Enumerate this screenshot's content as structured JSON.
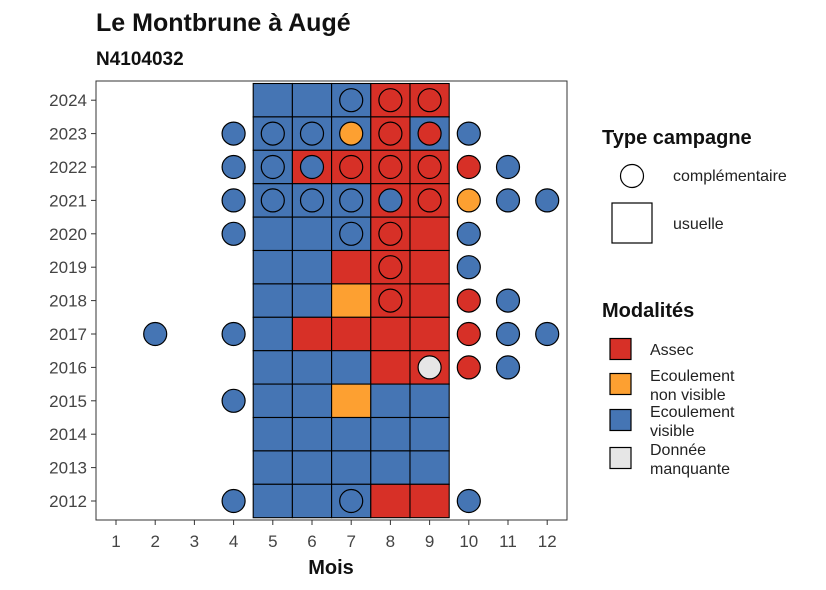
{
  "chart_data": {
    "type": "heatmap",
    "title": "Le Montbrune à Augé",
    "subtitle": "N4104032",
    "xlabel": "Mois",
    "ylabel": "",
    "x_ticks": [
      1,
      2,
      3,
      4,
      5,
      6,
      7,
      8,
      9,
      10,
      11,
      12
    ],
    "y_ticks": [
      2012,
      2013,
      2014,
      2015,
      2016,
      2017,
      2018,
      2019,
      2020,
      2021,
      2022,
      2023,
      2024
    ],
    "legend_shape": {
      "title": "Type campagne",
      "entries": [
        {
          "key": "complementaire",
          "label": "complémentaire",
          "shape": "circle"
        },
        {
          "key": "usuelle",
          "label": "usuelle",
          "shape": "square"
        }
      ]
    },
    "legend_fill": {
      "title": "Modalités",
      "entries": [
        {
          "key": "A",
          "lines": [
            "Assec"
          ],
          "color": "#d73027"
        },
        {
          "key": "N",
          "lines": [
            "Ecoulement",
            "non visible"
          ],
          "color": "#fda031"
        },
        {
          "key": "V",
          "lines": [
            "Ecoulement",
            "visible"
          ],
          "color": "#4575b4"
        },
        {
          "key": "M",
          "lines": [
            "Donnée",
            "manquante"
          ],
          "color": "#e6e6e6"
        }
      ]
    },
    "series": [
      {
        "year": 2024,
        "usuelle": {
          "5": "V",
          "6": "V",
          "7": "V",
          "8": "A",
          "9": "A"
        },
        "complementaire": {
          "7": "V",
          "8": "A",
          "9": "A"
        }
      },
      {
        "year": 2023,
        "usuelle": {
          "5": "V",
          "6": "V",
          "7": "V",
          "8": "A",
          "9": "V"
        },
        "complementaire": {
          "4": "V",
          "5": "V",
          "6": "V",
          "7": "N",
          "8": "A",
          "9": "A",
          "10": "V"
        }
      },
      {
        "year": 2022,
        "usuelle": {
          "5": "V",
          "6": "A",
          "7": "A",
          "8": "A",
          "9": "A"
        },
        "complementaire": {
          "4": "V",
          "5": "V",
          "6": "V",
          "7": "A",
          "8": "A",
          "9": "A",
          "10": "A",
          "11": "V"
        }
      },
      {
        "year": 2021,
        "usuelle": {
          "5": "V",
          "6": "V",
          "7": "V",
          "8": "A",
          "9": "A"
        },
        "complementaire": {
          "4": "V",
          "5": "V",
          "6": "V",
          "7": "V",
          "8": "V",
          "9": "A",
          "10": "N",
          "11": "V",
          "12": "V"
        }
      },
      {
        "year": 2020,
        "usuelle": {
          "5": "V",
          "6": "V",
          "7": "V",
          "8": "A",
          "9": "A"
        },
        "complementaire": {
          "4": "V",
          "7": "V",
          "8": "A",
          "10": "V"
        }
      },
      {
        "year": 2019,
        "usuelle": {
          "5": "V",
          "6": "V",
          "7": "A",
          "8": "A",
          "9": "A"
        },
        "complementaire": {
          "8": "A",
          "10": "V"
        }
      },
      {
        "year": 2018,
        "usuelle": {
          "5": "V",
          "6": "V",
          "7": "N",
          "8": "A",
          "9": "A"
        },
        "complementaire": {
          "8": "A",
          "10": "A",
          "11": "V"
        }
      },
      {
        "year": 2017,
        "usuelle": {
          "5": "V",
          "6": "A",
          "7": "A",
          "8": "A",
          "9": "A"
        },
        "complementaire": {
          "2": "V",
          "4": "V",
          "10": "A",
          "11": "V",
          "12": "V"
        }
      },
      {
        "year": 2016,
        "usuelle": {
          "5": "V",
          "6": "V",
          "7": "V",
          "8": "A",
          "9": "A"
        },
        "complementaire": {
          "9": "M",
          "10": "A",
          "11": "V"
        }
      },
      {
        "year": 2015,
        "usuelle": {
          "5": "V",
          "6": "V",
          "7": "N",
          "8": "V",
          "9": "V"
        },
        "complementaire": {
          "4": "V"
        }
      },
      {
        "year": 2014,
        "usuelle": {
          "5": "V",
          "6": "V",
          "7": "V",
          "8": "V",
          "9": "V"
        },
        "complementaire": {}
      },
      {
        "year": 2013,
        "usuelle": {
          "5": "V",
          "6": "V",
          "7": "V",
          "8": "V",
          "9": "V"
        },
        "complementaire": {}
      },
      {
        "year": 2012,
        "usuelle": {
          "5": "V",
          "6": "V",
          "7": "V",
          "8": "A",
          "9": "A"
        },
        "complementaire": {
          "4": "V",
          "7": "V",
          "10": "V"
        }
      }
    ]
  }
}
